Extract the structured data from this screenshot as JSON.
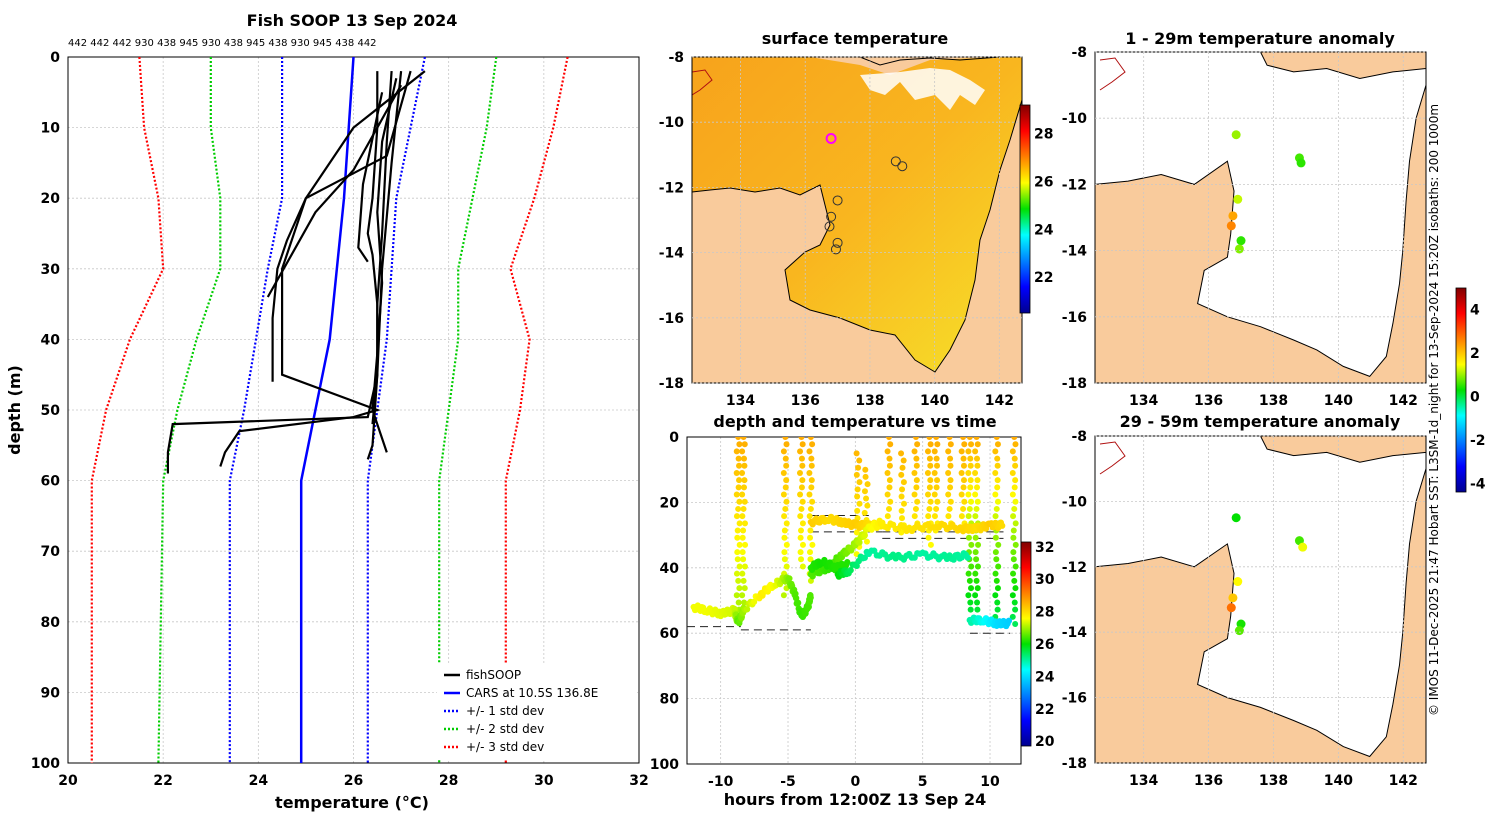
{
  "chart_data": [
    {
      "type": "line",
      "title": "Fish SOOP 13 Sep 2024",
      "top_labels": "442 442 442 930 438 945 930 438 945 438 930 945 438 442",
      "xlabel": "temperature",
      "xlabel_unit": "(°C)",
      "ylabel": "depth (m)",
      "xlim": [
        20,
        32
      ],
      "ylim": [
        100,
        0
      ],
      "xticks": [
        "20",
        "22",
        "24",
        "26",
        "28",
        "30",
        "32"
      ],
      "yticks": [
        "0",
        "10",
        "20",
        "30",
        "40",
        "50",
        "60",
        "70",
        "80",
        "90",
        "100"
      ],
      "legend": [
        {
          "label": "fishSOOP",
          "color": "#000000",
          "style": "solid"
        },
        {
          "label": "CARS at 10.5S 136.8E",
          "color": "#0000ff",
          "style": "solid"
        },
        {
          "label": "+/- 1 std dev",
          "color": "#0000ff",
          "style": "dotted"
        },
        {
          "label": "+/- 2 std dev",
          "color": "#00cc00",
          "style": "dotted"
        },
        {
          "label": "+/- 3 std dev",
          "color": "#ff0000",
          "style": "dotted"
        }
      ],
      "cars_profile": {
        "depth": [
          0,
          20,
          40,
          50,
          60,
          100
        ],
        "temp": [
          26.0,
          25.8,
          25.5,
          25.2,
          24.9,
          24.9
        ]
      },
      "std1_low": {
        "depth": [
          0,
          20,
          30,
          50,
          60,
          100
        ],
        "temp": [
          24.5,
          24.5,
          24.2,
          23.7,
          23.4,
          23.4
        ]
      },
      "std1_high": {
        "depth": [
          0,
          10,
          20,
          30,
          40,
          50,
          60,
          100
        ],
        "temp": [
          27.5,
          27.2,
          26.9,
          26.8,
          26.7,
          26.5,
          26.3,
          26.3
        ]
      },
      "std2_low": {
        "depth": [
          0,
          10,
          20,
          30,
          40,
          50,
          60,
          100
        ],
        "temp": [
          23.0,
          23.0,
          23.2,
          23.2,
          22.7,
          22.3,
          22.0,
          21.9
        ]
      },
      "std2_high": {
        "depth": [
          0,
          10,
          20,
          30,
          40,
          50,
          60,
          100
        ],
        "temp": [
          29.0,
          28.8,
          28.5,
          28.2,
          28.2,
          28.0,
          27.8,
          27.8
        ]
      },
      "std3_low": {
        "depth": [
          0,
          10,
          20,
          30,
          40,
          50,
          60,
          100
        ],
        "temp": [
          21.5,
          21.6,
          21.9,
          22.0,
          21.3,
          20.8,
          20.5,
          20.5
        ]
      },
      "std3_high": {
        "depth": [
          0,
          10,
          20,
          30,
          40,
          50,
          60,
          100
        ],
        "temp": [
          30.5,
          30.2,
          29.8,
          29.3,
          29.7,
          29.5,
          29.2,
          29.2
        ]
      },
      "fish_profiles": [
        {
          "depth": [
            2,
            10,
            20,
            25,
            28,
            35,
            45,
            55,
            57
          ],
          "temp": [
            26.5,
            26.5,
            26.4,
            26.3,
            26.4,
            26.5,
            26.5,
            26.4,
            26.3
          ]
        },
        {
          "depth": [
            2,
            12,
            25,
            35,
            45,
            52
          ],
          "temp": [
            26.8,
            26.7,
            26.6,
            26.5,
            26.5,
            26.4
          ]
        },
        {
          "depth": [
            2,
            14,
            20,
            26,
            30,
            37,
            46
          ],
          "temp": [
            27.2,
            26.7,
            25.0,
            24.6,
            24.4,
            24.3,
            24.3
          ]
        },
        {
          "depth": [
            4,
            16,
            22,
            28,
            34
          ],
          "temp": [
            27.0,
            26.0,
            25.2,
            24.7,
            24.2
          ]
        },
        {
          "depth": [
            2,
            10,
            20,
            30,
            45,
            50,
            51,
            53,
            56,
            58
          ],
          "temp": [
            27.5,
            26.0,
            25.0,
            24.5,
            24.5,
            26.5,
            26.0,
            23.6,
            23.3,
            23.2
          ]
        },
        {
          "depth": [
            2,
            15,
            30,
            45,
            51,
            52,
            56,
            59
          ],
          "temp": [
            27.0,
            26.8,
            26.6,
            26.5,
            26.3,
            22.2,
            22.1,
            22.1
          ]
        },
        {
          "depth": [
            3,
            12,
            22,
            32,
            42,
            50,
            56
          ],
          "temp": [
            26.9,
            26.6,
            26.5,
            26.6,
            26.5,
            26.4,
            26.7
          ]
        },
        {
          "depth": [
            5,
            18,
            27,
            29
          ],
          "temp": [
            26.6,
            26.2,
            26.1,
            26.3
          ]
        }
      ]
    },
    {
      "type": "heatmap",
      "title": "surface temperature",
      "xticks": [
        "134",
        "136",
        "138",
        "140",
        "142"
      ],
      "yticks": [
        "-8",
        "-10",
        "-12",
        "-14",
        "-16",
        "-18"
      ],
      "xlim": [
        132.5,
        142.7
      ],
      "ylim": [
        -18,
        -8
      ],
      "colorbar_ticks": [
        "22",
        "24",
        "26",
        "28"
      ],
      "colorbar_range": [
        20.5,
        29.2
      ],
      "markers": [
        {
          "lon": 136.8,
          "lat": -10.5,
          "style": "magenta-square"
        },
        {
          "lon": 138.8,
          "lat": -11.2,
          "style": "circle"
        },
        {
          "lon": 139.0,
          "lat": -11.35,
          "style": "circle"
        },
        {
          "lon": 137.0,
          "lat": -12.4,
          "style": "circle"
        },
        {
          "lon": 136.8,
          "lat": -12.9,
          "style": "circle"
        },
        {
          "lon": 136.75,
          "lat": -13.2,
          "style": "circle"
        },
        {
          "lon": 137.0,
          "lat": -13.7,
          "style": "circle"
        },
        {
          "lon": 136.95,
          "lat": -13.9,
          "style": "circle"
        }
      ]
    },
    {
      "type": "scatter",
      "title": "depth and temperature vs time",
      "xlabel": "hours from 12:00Z 13 Sep 24",
      "xlim": [
        -12.5,
        12.3
      ],
      "ylim": [
        100,
        0
      ],
      "xticks": [
        "-10",
        "-5",
        "0",
        "5",
        "10"
      ],
      "yticks": [
        "0",
        "20",
        "40",
        "60",
        "80",
        "100"
      ],
      "colorbar_ticks": [
        "20",
        "22",
        "24",
        "26",
        "28",
        "30",
        "32"
      ],
      "colorbar_range": [
        19.7,
        32.3
      ],
      "dashed_bottom": [
        {
          "x": [
            -12.5,
            -8.5
          ],
          "depth": 58
        },
        {
          "x": [
            -8.5,
            -3.3
          ],
          "depth": 59
        },
        {
          "x": [
            -3.3,
            1.0
          ],
          "depth": 24
        },
        {
          "x": [
            -3.3,
            2.0
          ],
          "depth": 29
        },
        {
          "x": [
            2.0,
            11.0
          ],
          "depth": 29
        },
        {
          "x": [
            2.0,
            11.0
          ],
          "depth": 31
        },
        {
          "x": [
            8.5,
            11.5
          ],
          "depth": 60
        }
      ],
      "series": [
        {
          "name": "trace1",
          "x": [
            -12.0,
            -11.0,
            -10.0,
            -9.0,
            -8.7,
            -8.3,
            -7.0,
            -6.0,
            -5.0,
            -4.5,
            -4.0,
            -3.5,
            -3.3
          ],
          "depth": [
            52,
            53,
            54,
            53,
            57,
            53,
            48,
            45,
            43,
            48,
            55,
            52,
            48
          ],
          "temp": [
            27.5,
            27.5,
            27.4,
            27.3,
            26.5,
            27.0,
            27.8,
            27.5,
            26.8,
            26.5,
            26.3,
            26.4,
            26.5
          ]
        },
        {
          "name": "trace2",
          "x": [
            -3.3,
            -2.0,
            -1.0,
            0.0,
            1.0,
            2.0,
            4.0,
            6.0,
            8.0,
            9.0,
            10.0,
            11.0
          ],
          "depth": [
            26,
            25,
            26,
            27,
            27,
            27,
            28,
            27,
            28,
            28,
            27,
            27
          ],
          "temp": [
            28.2,
            28.0,
            28.1,
            28.2,
            28.0,
            27.8,
            27.9,
            28.0,
            28.1,
            28.0,
            28.2,
            28.0
          ]
        },
        {
          "name": "trace3",
          "x": [
            -3.3,
            -2.0,
            -1.0,
            0.0,
            1.0,
            2.0
          ],
          "depth": [
            42,
            40,
            36,
            33,
            28,
            26
          ],
          "temp": [
            26.5,
            26.3,
            26.6,
            27.0,
            27.5,
            27.8
          ]
        },
        {
          "name": "trace4",
          "x": [
            -3.3,
            -2.5,
            -1.5,
            -0.5
          ],
          "depth": [
            40,
            38,
            40,
            39
          ],
          "temp": [
            26.2,
            26.1,
            26.2,
            26.2
          ]
        },
        {
          "name": "trace5",
          "x": [
            -1.3,
            -0.5,
            1.0,
            3.0,
            5.0,
            7.0,
            8.5
          ],
          "depth": [
            42,
            41,
            35,
            37,
            36,
            37,
            36
          ],
          "temp": [
            26.0,
            25.5,
            25.0,
            25.2,
            25.0,
            25.1,
            25.0
          ]
        },
        {
          "name": "trace6",
          "x": [
            8.5,
            9.5,
            10.5,
            11.5
          ],
          "depth": [
            56,
            56,
            57,
            57
          ],
          "temp": [
            25.0,
            24.5,
            24.0,
            23.8
          ]
        }
      ],
      "vertical_dives": [
        -8.7,
        -8.3,
        -5.2,
        -4.0,
        -3.3,
        0.2,
        0.8,
        2.5,
        3.5,
        4.5,
        5.5,
        6.0,
        7.0,
        8.0,
        8.5,
        9.0,
        10.5,
        11.8
      ],
      "dive_depth_ranges": [
        [
          0,
          57
        ],
        [
          0,
          57
        ],
        [
          0,
          50
        ],
        [
          0,
          40
        ],
        [
          0,
          45
        ],
        [
          5,
          36
        ],
        [
          10,
          33
        ],
        [
          0,
          27
        ],
        [
          5,
          30
        ],
        [
          0,
          27
        ],
        [
          0,
          35
        ],
        [
          0,
          30
        ],
        [
          0,
          27
        ],
        [
          0,
          30
        ],
        [
          0,
          55
        ],
        [
          0,
          55
        ],
        [
          0,
          58
        ],
        [
          0,
          58
        ]
      ]
    },
    {
      "type": "scatter",
      "title": "1 - 29m temperature anomaly",
      "xticks": [
        "134",
        "136",
        "138",
        "140",
        "142"
      ],
      "yticks": [
        "-8",
        "-10",
        "-12",
        "-14",
        "-16",
        "-18"
      ],
      "xlim": [
        132.5,
        142.7
      ],
      "ylim": [
        -18,
        -8
      ],
      "points": [
        {
          "lon": 136.85,
          "lat": -10.5,
          "anomaly": 1.0
        },
        {
          "lon": 138.8,
          "lat": -11.2,
          "anomaly": 0.6
        },
        {
          "lon": 138.85,
          "lat": -11.35,
          "anomaly": 0.5
        },
        {
          "lon": 136.9,
          "lat": -12.45,
          "anomaly": 1.2
        },
        {
          "lon": 136.75,
          "lat": -12.95,
          "anomaly": 2.3
        },
        {
          "lon": 136.7,
          "lat": -13.25,
          "anomaly": 2.6
        },
        {
          "lon": 137.0,
          "lat": -13.7,
          "anomaly": 0.5
        },
        {
          "lon": 136.95,
          "lat": -13.95,
          "anomaly": 0.9
        }
      ]
    },
    {
      "type": "scatter",
      "title": "29 - 59m temperature anomaly",
      "xticks": [
        "134",
        "136",
        "138",
        "140",
        "142"
      ],
      "yticks": [
        "-8",
        "-10",
        "-12",
        "-14",
        "-16",
        "-18"
      ],
      "xlim": [
        132.5,
        142.7
      ],
      "ylim": [
        -18,
        -8
      ],
      "points": [
        {
          "lon": 136.85,
          "lat": -10.5,
          "anomaly": 0.3
        },
        {
          "lon": 138.8,
          "lat": -11.2,
          "anomaly": 0.6
        },
        {
          "lon": 138.9,
          "lat": -11.4,
          "anomaly": 1.4
        },
        {
          "lon": 136.9,
          "lat": -12.45,
          "anomaly": 1.5
        },
        {
          "lon": 136.75,
          "lat": -12.95,
          "anomaly": 2.0
        },
        {
          "lon": 136.7,
          "lat": -13.25,
          "anomaly": 2.8
        },
        {
          "lon": 137.0,
          "lat": -13.75,
          "anomaly": 0.4
        },
        {
          "lon": 136.95,
          "lat": -13.95,
          "anomaly": 0.7
        }
      ],
      "colorbar_ticks": [
        "4",
        "2",
        "0",
        "-2",
        "-4"
      ],
      "colorbar_range": [
        -4.4,
        5.0
      ]
    }
  ],
  "side_caption": "© IMOS 11-Dec-2025 21:47 Hobart SST: L3SM-1d_night for 13-Sep-2024 15:20Z isobaths: 200  1000m",
  "colors": {
    "land": "#f9cb9c",
    "sea_white": "#ffffff",
    "coastline": "#000000",
    "river": "#b01010"
  }
}
